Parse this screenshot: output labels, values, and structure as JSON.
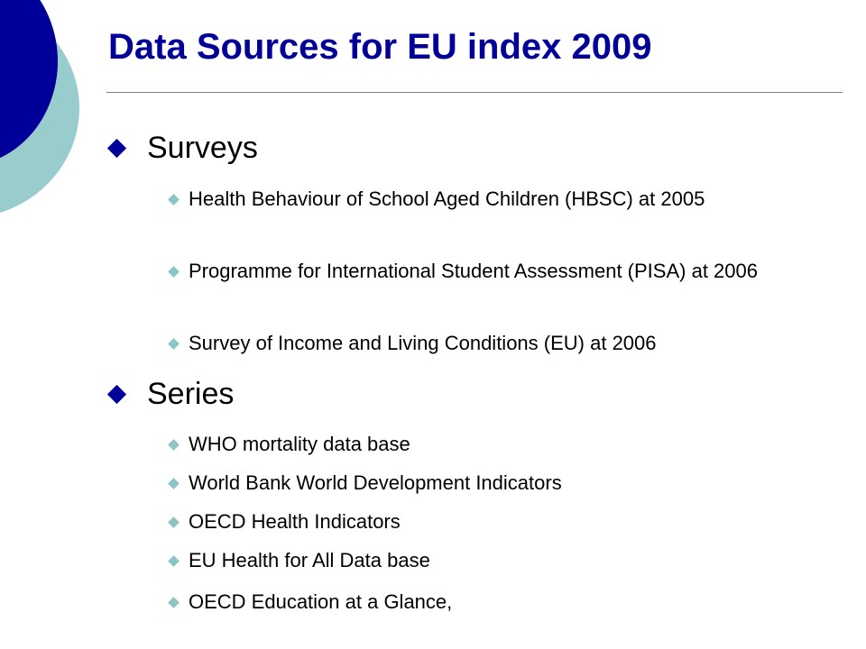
{
  "slide": {
    "title": "Data Sources for EU index 2009",
    "colors": {
      "title": "#000099",
      "accent_dark": "#000099",
      "accent_light": "#99CCCC",
      "rule": "#808080"
    }
  },
  "sections": [
    {
      "heading": "Surveys",
      "items": [
        "Health Behaviour of School Aged Children (HBSC) at 2005",
        "Programme for International Student Assessment (PISA) at 2006",
        "Survey of Income and Living Conditions (EU) at 2006"
      ]
    },
    {
      "heading": "Series",
      "items": [
        "WHO mortality data base",
        "World Bank World Development Indicators",
        "OECD Health Indicators",
        "EU Health for All Data base",
        "OECD Education at a Glance,"
      ]
    }
  ]
}
